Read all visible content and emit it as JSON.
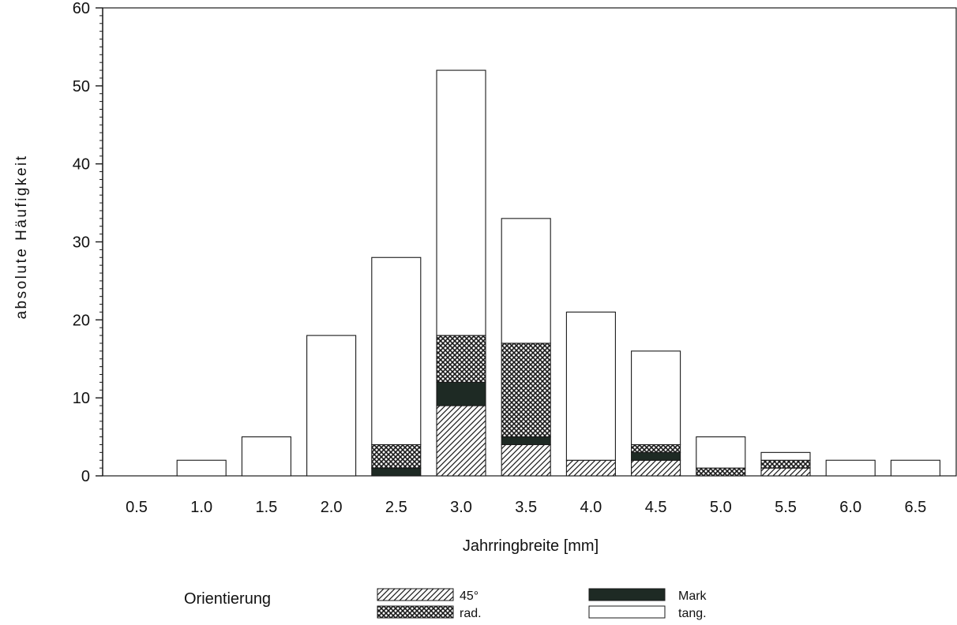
{
  "chart_data": {
    "type": "bar",
    "stacked": true,
    "title": "",
    "xlabel": "Jahrringbreite [mm]",
    "ylabel": "absolute Häufigkeit",
    "categories": [
      "0.5",
      "1.0",
      "1.5",
      "2.0",
      "2.5",
      "3.0",
      "3.5",
      "4.0",
      "4.5",
      "5.0",
      "5.5",
      "6.0",
      "6.5"
    ],
    "ylim": [
      0,
      60
    ],
    "yticks": [
      "0",
      "10",
      "20",
      "30",
      "40",
      "50",
      "60"
    ],
    "grid": false,
    "series": [
      {
        "name": "45°",
        "pattern": "hatch",
        "values": [
          0,
          0,
          0,
          0,
          0,
          9,
          4,
          2,
          2,
          0,
          1,
          0,
          0
        ]
      },
      {
        "name": "Mark",
        "pattern": "solid",
        "values": [
          0,
          0,
          0,
          0,
          1,
          3,
          1,
          0,
          1,
          0,
          0,
          0,
          0
        ]
      },
      {
        "name": "rad.",
        "pattern": "crosshatch",
        "values": [
          0,
          0,
          0,
          0,
          3,
          6,
          12,
          0,
          1,
          1,
          1,
          0,
          0
        ]
      },
      {
        "name": "tang.",
        "pattern": "none",
        "values": [
          0,
          2,
          5,
          18,
          24,
          34,
          16,
          19,
          12,
          4,
          1,
          2,
          2
        ]
      }
    ],
    "legend": {
      "title": "Orientierung",
      "placement": "bottom",
      "entries": [
        "45°",
        "rad.",
        "Mark",
        "tang."
      ]
    },
    "colors": {
      "ink": "#1a1a1a",
      "mark_fill": "#1e2a24",
      "background": "#ffffff"
    }
  }
}
